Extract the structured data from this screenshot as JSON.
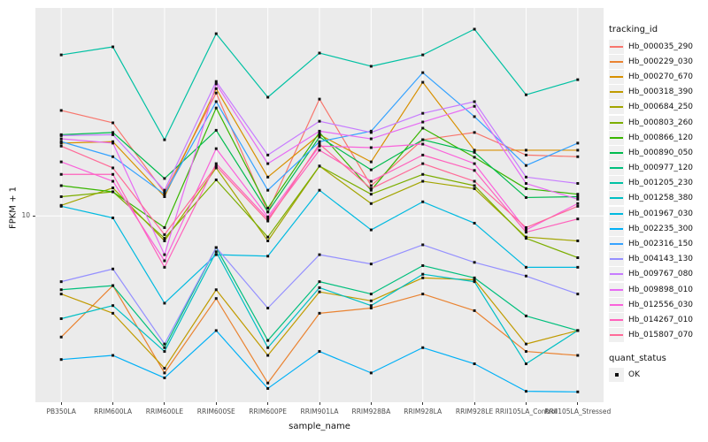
{
  "figure": {
    "y_axis_title": "FPKM + 1",
    "x_axis_title": "sample_name",
    "legend": {
      "color_legend_title": "tracking_id",
      "shape_legend_title": "quant_status",
      "shape_item_label": "OK"
    }
  },
  "style": {
    "panel_bg": "#EBEBEB",
    "grid_color": "#FFFFFF",
    "tick_label_color": "#4D4D4D",
    "marker_color": "#111111",
    "legend_key_bg": "#F0F0F0"
  },
  "chart_data": {
    "type": "line",
    "title": "",
    "xlabel": "sample_name",
    "ylabel": "FPKM + 1",
    "y_scale": "log10",
    "ylim": [
      1.57,
      78.9
    ],
    "y_ticks": [
      10
    ],
    "grid": "major gridlines only, white on gray panel",
    "legend_position": "right",
    "marker": {
      "shape": "square",
      "color": "black",
      "meaning": "quant_status = OK at every point"
    },
    "categories": [
      "PB350LA",
      "RRIM600LA",
      "RRIM600LE",
      "RRIM600SE",
      "RRIM600PE",
      "RRIM901LA",
      "RRIM928BA",
      "RRIM928LA",
      "RRIM928LE",
      "RRII105LA_Control",
      "RRII105LA_Stressed"
    ],
    "series": [
      {
        "name": "Hb_000035_290",
        "color": "#F8766D",
        "values": [
          28.5,
          25.2,
          12.6,
          33.9,
          10.4,
          31.9,
          13.5,
          21.3,
          22.9,
          18.3,
          18.0
        ]
      },
      {
        "name": "Hb_000229_030",
        "color": "#EA8331",
        "values": [
          3.0,
          5.0,
          2.1,
          4.4,
          1.9,
          3.8,
          4.0,
          4.6,
          3.9,
          2.6,
          2.5
        ]
      },
      {
        "name": "Hb_000270_670",
        "color": "#D89000",
        "values": [
          20.6,
          20.9,
          12.1,
          35.4,
          14.7,
          22.4,
          17.1,
          37.7,
          19.2,
          19.2,
          19.2
        ]
      },
      {
        "name": "Hb_000318_390",
        "color": "#C09B00",
        "values": [
          4.6,
          3.8,
          2.2,
          4.8,
          2.5,
          4.7,
          4.3,
          5.4,
          5.3,
          2.8,
          3.2
        ]
      },
      {
        "name": "Hb_000684_250",
        "color": "#A3A500",
        "values": [
          11.1,
          13.2,
          7.8,
          16.1,
          7.8,
          16.4,
          11.3,
          14.1,
          13.1,
          8.1,
          7.8
        ]
      },
      {
        "name": "Hb_000803_260",
        "color": "#7CAE00",
        "values": [
          12.1,
          12.7,
          8.0,
          14.3,
          8.1,
          16.4,
          12.4,
          15.1,
          13.5,
          8.0,
          6.6
        ]
      },
      {
        "name": "Hb_000866_120",
        "color": "#39B600",
        "values": [
          13.5,
          12.7,
          8.9,
          29.2,
          10.8,
          22.9,
          12.9,
          23.9,
          17.9,
          13.1,
          12.4
        ]
      },
      {
        "name": "Hb_000890_050",
        "color": "#00BB4E",
        "values": [
          22.4,
          22.9,
          14.5,
          23.4,
          10.4,
          21.9,
          15.8,
          21.3,
          18.8,
          12.0,
          12.1
        ]
      },
      {
        "name": "Hb_000977_120",
        "color": "#00BF7D",
        "values": [
          4.8,
          5.0,
          2.7,
          7.3,
          2.9,
          5.2,
          4.6,
          6.1,
          5.4,
          3.7,
          3.2
        ]
      },
      {
        "name": "Hb_001205_230",
        "color": "#00C1A3",
        "values": [
          49.5,
          53.6,
          21.3,
          61.1,
          32.5,
          50.4,
          44.2,
          49.5,
          63.9,
          33.3,
          38.7
        ]
      },
      {
        "name": "Hb_001258_380",
        "color": "#00BFC4",
        "values": [
          3.6,
          4.1,
          2.6,
          7.0,
          2.7,
          4.9,
          4.1,
          5.6,
          5.2,
          2.3,
          3.2
        ]
      },
      {
        "name": "Hb_001967_030",
        "color": "#00BAE0",
        "values": [
          11.0,
          9.8,
          4.2,
          6.8,
          6.7,
          12.9,
          8.7,
          11.5,
          9.3,
          6.0,
          6.0
        ]
      },
      {
        "name": "Hb_002235_300",
        "color": "#00B0F6",
        "values": [
          2.4,
          2.5,
          2.0,
          3.2,
          1.8,
          2.6,
          2.1,
          2.7,
          2.3,
          1.75,
          1.74
        ]
      },
      {
        "name": "Hb_002316_150",
        "color": "#35A2FF",
        "values": [
          20.9,
          18.0,
          12.4,
          31.1,
          12.9,
          20.9,
          23.2,
          41.5,
          26.8,
          16.5,
          20.6
        ]
      },
      {
        "name": "Hb_004143_130",
        "color": "#9590FF",
        "values": [
          5.2,
          5.9,
          2.8,
          7.3,
          4.0,
          6.8,
          6.2,
          7.5,
          6.3,
          5.5,
          4.6
        ]
      },
      {
        "name": "Hb_009767_080",
        "color": "#C77CFF",
        "values": [
          22.2,
          22.4,
          12.9,
          38.0,
          18.3,
          25.6,
          22.9,
          27.7,
          31.1,
          14.7,
          13.8
        ]
      },
      {
        "name": "Hb_009898_010",
        "color": "#E76BF3",
        "values": [
          21.5,
          20.6,
          6.8,
          37.1,
          16.8,
          23.2,
          21.5,
          25.4,
          29.7,
          13.8,
          11.8
        ]
      },
      {
        "name": "Hb_012556_030",
        "color": "#FA62DB",
        "values": [
          17.1,
          14.1,
          6.4,
          19.5,
          9.9,
          20.0,
          19.7,
          20.4,
          16.8,
          8.7,
          11.3
        ]
      },
      {
        "name": "Hb_014267_010",
        "color": "#FF62BC",
        "values": [
          15.1,
          15.1,
          6.0,
          16.8,
          9.7,
          19.2,
          14.1,
          18.3,
          15.7,
          8.5,
          9.7
        ]
      },
      {
        "name": "Hb_015807_070",
        "color": "#FF6A98",
        "values": [
          20.0,
          16.1,
          8.3,
          16.4,
          9.5,
          20.4,
          13.1,
          16.8,
          14.1,
          8.9,
          11.0
        ]
      }
    ]
  }
}
